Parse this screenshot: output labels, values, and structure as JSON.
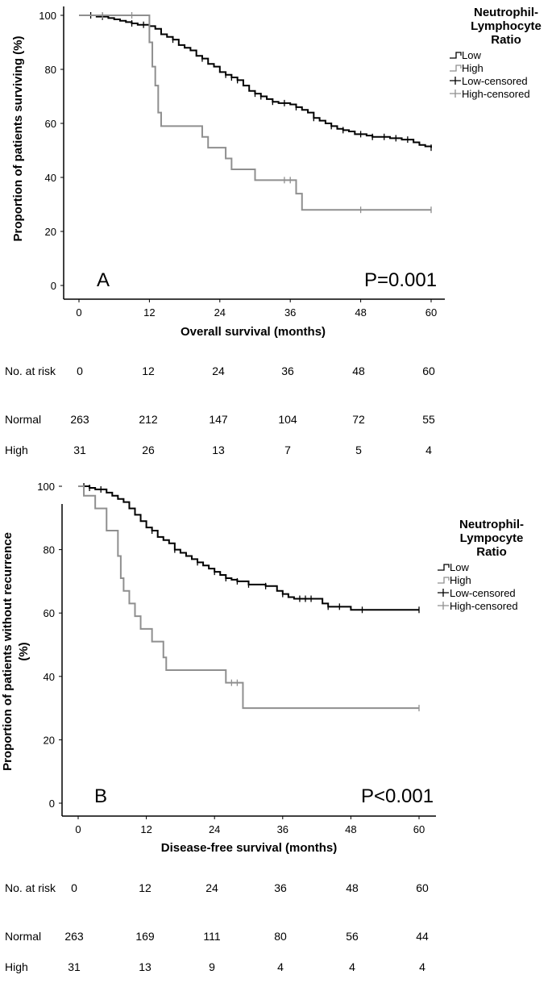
{
  "chart_data": [
    {
      "type": "line",
      "panel_label": "A",
      "p_value": "P=0.001",
      "xlabel": "Overall survival (months)",
      "ylabel": "Proportion of patients surviving (%)",
      "xticks": [
        0,
        12,
        24,
        36,
        48,
        60
      ],
      "yticks": [
        0,
        20,
        40,
        60,
        80,
        100
      ],
      "xlim": [
        0,
        60
      ],
      "ylim": [
        0,
        100
      ],
      "legend": {
        "title": "Neutrophil-\nLymphocyte\nRatio",
        "items": [
          "Low",
          "High",
          "Low-censored",
          "High-censored"
        ]
      },
      "series": [
        {
          "name": "Low",
          "color": "#000000",
          "steps": [
            [
              0,
              100
            ],
            [
              3,
              99.5
            ],
            [
              5,
              99
            ],
            [
              6,
              98.5
            ],
            [
              7,
              98
            ],
            [
              8,
              97.5
            ],
            [
              9,
              97
            ],
            [
              10,
              96.5
            ],
            [
              12,
              96
            ],
            [
              13,
              95
            ],
            [
              14,
              93
            ],
            [
              15,
              92
            ],
            [
              16,
              91
            ],
            [
              17,
              89
            ],
            [
              18,
              88
            ],
            [
              19,
              87
            ],
            [
              20,
              85
            ],
            [
              21,
              84
            ],
            [
              22,
              82
            ],
            [
              23,
              81
            ],
            [
              24,
              79
            ],
            [
              25,
              78
            ],
            [
              26,
              77
            ],
            [
              27,
              76
            ],
            [
              28,
              74
            ],
            [
              29,
              72
            ],
            [
              30,
              71
            ],
            [
              31,
              70
            ],
            [
              32,
              69
            ],
            [
              33,
              68
            ],
            [
              34,
              67.5
            ],
            [
              36,
              67
            ],
            [
              37,
              66
            ],
            [
              38,
              65
            ],
            [
              39,
              64
            ],
            [
              40,
              62
            ],
            [
              41,
              61
            ],
            [
              42,
              60
            ],
            [
              43,
              59
            ],
            [
              44,
              58
            ],
            [
              45,
              57.5
            ],
            [
              46,
              57
            ],
            [
              47,
              56
            ],
            [
              49,
              55.5
            ],
            [
              50,
              55
            ],
            [
              53,
              54.5
            ],
            [
              55,
              54
            ],
            [
              57,
              53
            ],
            [
              58,
              52
            ],
            [
              59,
              51.5
            ],
            [
              60,
              51
            ]
          ],
          "censored": [
            [
              2,
              100
            ],
            [
              4,
              99.5
            ],
            [
              9,
              97
            ],
            [
              11,
              96.5
            ],
            [
              16,
              91
            ],
            [
              21,
              84
            ],
            [
              25,
              78
            ],
            [
              26,
              77
            ],
            [
              27,
              76
            ],
            [
              30,
              71
            ],
            [
              31,
              70
            ],
            [
              33,
              68
            ],
            [
              35,
              67.5
            ],
            [
              37,
              66
            ],
            [
              40,
              62
            ],
            [
              43,
              59
            ],
            [
              45,
              57.5
            ],
            [
              48,
              56
            ],
            [
              50,
              55
            ],
            [
              52,
              55
            ],
            [
              54,
              54.5
            ],
            [
              56,
              54
            ],
            [
              60,
              51
            ]
          ]
        },
        {
          "name": "High",
          "color": "#8f8f8f",
          "steps": [
            [
              0,
              100
            ],
            [
              11.3,
              100
            ],
            [
              12,
              90
            ],
            [
              12.5,
              81
            ],
            [
              13,
              74
            ],
            [
              13.5,
              64
            ],
            [
              14,
              59
            ],
            [
              21,
              55
            ],
            [
              22,
              51
            ],
            [
              25,
              47
            ],
            [
              26,
              43
            ],
            [
              30,
              39
            ],
            [
              37,
              34
            ],
            [
              38,
              28
            ],
            [
              60,
              28
            ]
          ],
          "censored": [
            [
              4,
              100
            ],
            [
              9,
              100
            ],
            [
              35,
              39
            ],
            [
              36,
              39
            ],
            [
              48,
              28
            ],
            [
              60,
              28
            ]
          ]
        }
      ],
      "risk_table": {
        "header_label": "No. at risk",
        "header_values": [
          "0",
          "12",
          "24",
          "36",
          "48",
          "60"
        ],
        "rows": [
          {
            "label": "Normal",
            "values": [
              "263",
              "212",
              "147",
              "104",
              "72",
              "55"
            ]
          },
          {
            "label": "High",
            "values": [
              "31",
              "26",
              "13",
              "7",
              "5",
              "4"
            ]
          }
        ]
      }
    },
    {
      "type": "line",
      "panel_label": "B",
      "p_value": "P<0.001",
      "xlabel": "Disease-free survival (months)",
      "ylabel": "Proportion of patients without recurrence (%)",
      "ylabel_lines": [
        "Proportion of patients without recurrence",
        "(%)"
      ],
      "xticks": [
        0,
        12,
        24,
        36,
        48,
        60
      ],
      "yticks": [
        0,
        20,
        40,
        60,
        80,
        100
      ],
      "xlim": [
        0,
        60
      ],
      "ylim": [
        0,
        100
      ],
      "legend": {
        "title": "Neutrophil-\nLympocyte\nRatio",
        "items": [
          "Low",
          "High",
          "Low-censored",
          "High-censored"
        ]
      },
      "series": [
        {
          "name": "Low",
          "color": "#000000",
          "steps": [
            [
              0,
              100
            ],
            [
              2,
              99.5
            ],
            [
              3,
              99
            ],
            [
              5,
              98
            ],
            [
              6,
              97
            ],
            [
              7,
              96
            ],
            [
              8,
              95
            ],
            [
              9,
              93
            ],
            [
              10,
              91
            ],
            [
              11,
              89
            ],
            [
              12,
              87
            ],
            [
              13,
              86
            ],
            [
              14,
              84
            ],
            [
              15,
              83
            ],
            [
              16,
              82
            ],
            [
              17,
              80
            ],
            [
              18,
              79
            ],
            [
              19,
              78
            ],
            [
              20,
              77
            ],
            [
              21,
              76
            ],
            [
              22,
              75
            ],
            [
              23,
              74
            ],
            [
              24,
              73
            ],
            [
              25,
              72
            ],
            [
              26,
              71
            ],
            [
              27,
              70.5
            ],
            [
              28,
              70
            ],
            [
              30,
              69
            ],
            [
              33,
              68.5
            ],
            [
              35,
              67
            ],
            [
              36,
              66
            ],
            [
              37,
              65
            ],
            [
              38,
              64.5
            ],
            [
              42,
              64.5
            ],
            [
              43,
              63
            ],
            [
              44,
              62
            ],
            [
              47,
              62
            ],
            [
              48,
              61
            ],
            [
              60,
              61
            ]
          ],
          "censored": [
            [
              1,
              100
            ],
            [
              2,
              99.5
            ],
            [
              4,
              99
            ],
            [
              13,
              86
            ],
            [
              17,
              80
            ],
            [
              21,
              76
            ],
            [
              24,
              73
            ],
            [
              26,
              71
            ],
            [
              28,
              70
            ],
            [
              30,
              69
            ],
            [
              33,
              68.5
            ],
            [
              36,
              66
            ],
            [
              39,
              64.5
            ],
            [
              40,
              64.5
            ],
            [
              41,
              64.5
            ],
            [
              44,
              62
            ],
            [
              46,
              62
            ],
            [
              50,
              61
            ],
            [
              60,
              61
            ]
          ]
        },
        {
          "name": "High",
          "color": "#8f8f8f",
          "steps": [
            [
              0,
              100
            ],
            [
              1,
              97
            ],
            [
              3,
              93
            ],
            [
              5,
              86
            ],
            [
              7,
              78
            ],
            [
              7.5,
              71
            ],
            [
              8,
              67
            ],
            [
              9,
              63
            ],
            [
              10,
              59
            ],
            [
              11,
              55
            ],
            [
              13,
              51
            ],
            [
              15,
              46
            ],
            [
              15.5,
              42
            ],
            [
              26,
              38
            ],
            [
              29,
              30
            ],
            [
              60,
              30
            ]
          ],
          "censored": [
            [
              27,
              38
            ],
            [
              28,
              38
            ],
            [
              60,
              30
            ]
          ]
        }
      ],
      "risk_table": {
        "header_label": "No. at risk",
        "header_values": [
          "0",
          "12",
          "24",
          "36",
          "48",
          "60"
        ],
        "rows": [
          {
            "label": "Normal",
            "values": [
              "263",
              "169",
              "111",
              "80",
              "56",
              "44"
            ]
          },
          {
            "label": "High",
            "values": [
              "31",
              "13",
              "9",
              "4",
              "4",
              "4"
            ]
          }
        ]
      }
    }
  ]
}
